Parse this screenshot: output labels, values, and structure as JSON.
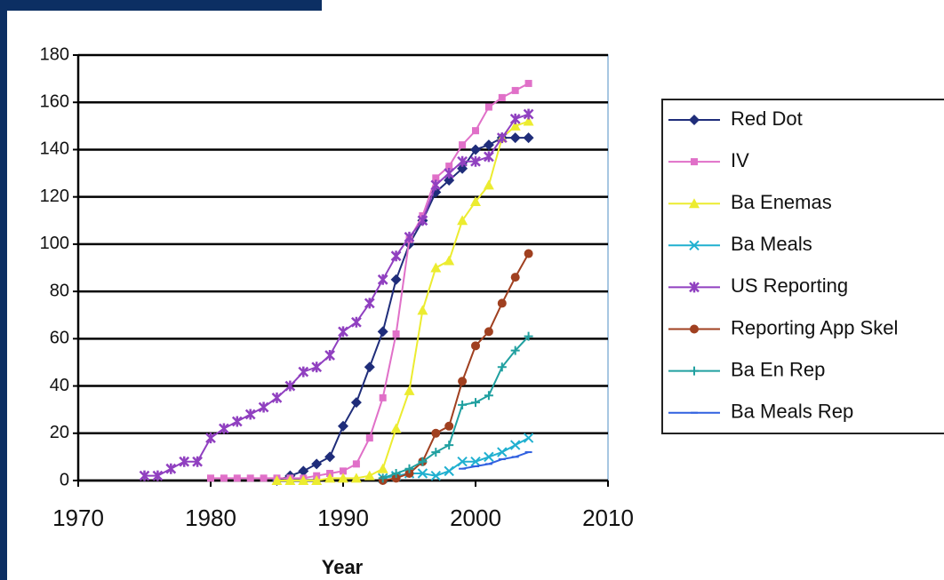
{
  "chart_data": {
    "type": "line",
    "xlabel": "Year",
    "xlim": [
      1970,
      2010
    ],
    "xticks": [
      1970,
      1980,
      1990,
      2000,
      2010
    ],
    "ylim": [
      0,
      180
    ],
    "yticks": [
      0,
      20,
      40,
      60,
      80,
      100,
      120,
      140,
      160,
      180
    ],
    "grid": true,
    "legend": "right",
    "series": [
      {
        "name": "Red Dot",
        "color": "#1f2d7a",
        "marker": "diamond",
        "x": [
          1985,
          1986,
          1987,
          1988,
          1989,
          1990,
          1991,
          1992,
          1993,
          1994,
          1995,
          1996,
          1997,
          1998,
          1999,
          2000,
          2001,
          2002,
          2003,
          2004
        ],
        "values": [
          0,
          2,
          4,
          7,
          10,
          23,
          33,
          48,
          63,
          85,
          100,
          110,
          122,
          127,
          132,
          140,
          142,
          145,
          145,
          145
        ]
      },
      {
        "name": "IV",
        "color": "#e070c8",
        "marker": "square",
        "x": [
          1980,
          1981,
          1982,
          1983,
          1984,
          1985,
          1986,
          1987,
          1988,
          1989,
          1990,
          1991,
          1992,
          1993,
          1994,
          1995,
          1996,
          1997,
          1998,
          1999,
          2000,
          2001,
          2002,
          2003,
          2004
        ],
        "values": [
          1,
          1,
          1,
          1,
          1,
          1,
          1,
          1,
          2,
          3,
          4,
          7,
          18,
          35,
          62,
          102,
          112,
          128,
          133,
          142,
          148,
          158,
          162,
          165,
          168
        ]
      },
      {
        "name": "Ba Enemas",
        "color": "#ecec30",
        "marker": "triangle",
        "x": [
          1985,
          1986,
          1987,
          1988,
          1989,
          1990,
          1991,
          1992,
          1993,
          1994,
          1995,
          1996,
          1997,
          1998,
          1999,
          2000,
          2001,
          2002,
          2003,
          2004
        ],
        "values": [
          0,
          0,
          0,
          0,
          1,
          1,
          1,
          2,
          5,
          22,
          38,
          72,
          90,
          93,
          110,
          118,
          125,
          145,
          150,
          152
        ]
      },
      {
        "name": "Ba Meals",
        "color": "#20b0d0",
        "marker": "x",
        "x": [
          1993,
          1994,
          1995,
          1996,
          1997,
          1998,
          1999,
          2000,
          2001,
          2002,
          2003,
          2004
        ],
        "values": [
          1,
          2,
          3,
          3,
          2,
          4,
          8,
          8,
          10,
          12,
          15,
          18
        ]
      },
      {
        "name": "US Reporting",
        "color": "#9040c0",
        "marker": "star",
        "x": [
          1975,
          1976,
          1977,
          1978,
          1979,
          1980,
          1981,
          1982,
          1983,
          1984,
          1985,
          1986,
          1987,
          1988,
          1989,
          1990,
          1991,
          1992,
          1993,
          1994,
          1995,
          1996,
          1997,
          1998,
          1999,
          2000,
          2001,
          2002,
          2003,
          2004
        ],
        "values": [
          2,
          2,
          5,
          8,
          8,
          18,
          22,
          25,
          28,
          31,
          35,
          40,
          46,
          48,
          53,
          63,
          67,
          75,
          85,
          95,
          103,
          110,
          125,
          130,
          135,
          135,
          137,
          145,
          153,
          155
        ]
      },
      {
        "name": "Reporting App Skel",
        "color": "#a04020",
        "marker": "circle",
        "x": [
          1993,
          1994,
          1995,
          1996,
          1997,
          1998,
          1999,
          2000,
          2001,
          2002,
          2003,
          2004
        ],
        "values": [
          0,
          1,
          3,
          8,
          20,
          23,
          42,
          57,
          63,
          75,
          86,
          96
        ]
      },
      {
        "name": "Ba En Rep",
        "color": "#20a0a0",
        "marker": "plus",
        "x": [
          1993,
          1994,
          1995,
          1996,
          1997,
          1998,
          1999,
          2000,
          2001,
          2002,
          2003,
          2004
        ],
        "values": [
          1,
          3,
          5,
          8,
          12,
          15,
          32,
          33,
          36,
          48,
          55,
          61
        ]
      },
      {
        "name": "Ba Meals Rep",
        "color": "#3060e0",
        "marker": "dash",
        "x": [
          1999,
          2000,
          2001,
          2002,
          2003,
          2004
        ],
        "values": [
          5,
          6,
          7,
          9,
          10,
          12
        ]
      }
    ]
  }
}
